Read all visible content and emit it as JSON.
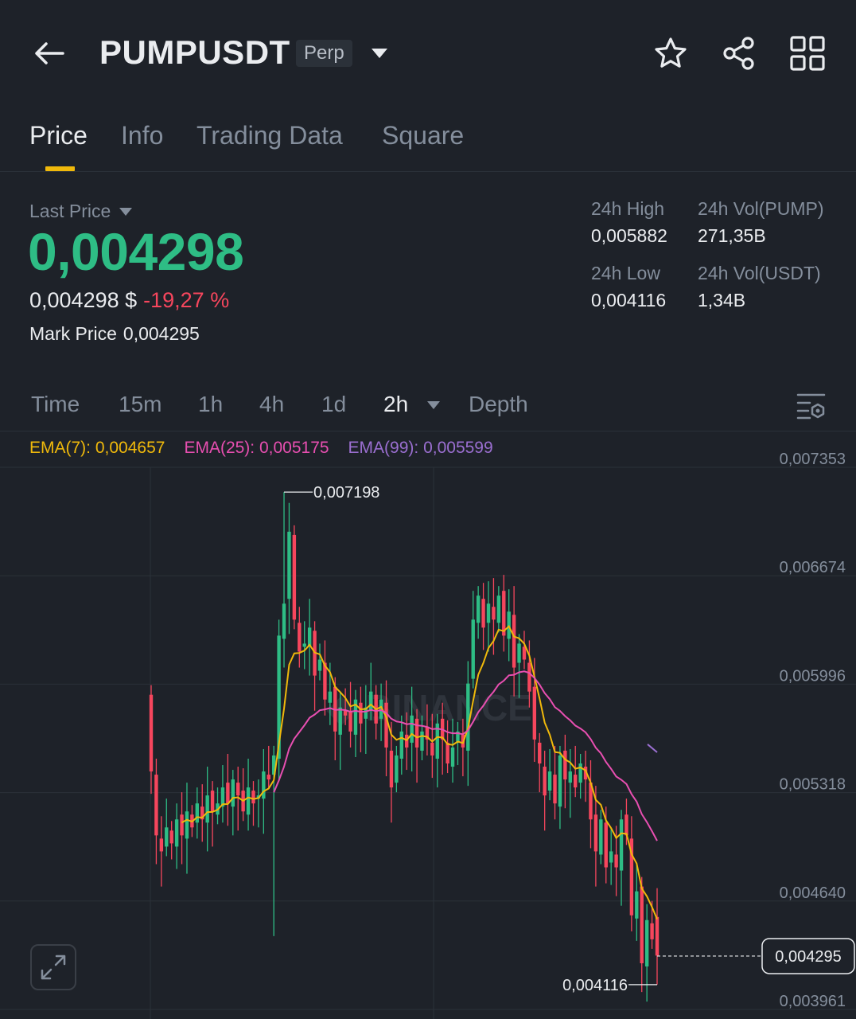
{
  "header": {
    "symbol": "PUMPUSDT",
    "badge": "Perp",
    "icons": [
      "back-arrow-icon",
      "chevron-down-icon",
      "star-icon",
      "share-icon",
      "grid-icon"
    ]
  },
  "tabs": [
    {
      "label": "Price",
      "active": true
    },
    {
      "label": "Info",
      "active": false
    },
    {
      "label": "Trading Data",
      "active": false
    },
    {
      "label": "Square",
      "active": false
    }
  ],
  "price": {
    "last_label": "Last Price",
    "last_price": "0,004298",
    "usd_value": "0,004298 $",
    "change_pct": "-19,27 %",
    "mark_label": "Mark Price",
    "mark_value": "0,004295",
    "high_label": "24h High",
    "high_value": "0,005882",
    "low_label": "24h Low",
    "low_value": "0,004116",
    "vol_base_label": "24h Vol(PUMP)",
    "vol_base_value": "271,35B",
    "vol_quote_label": "24h Vol(USDT)",
    "vol_quote_value": "1,34B"
  },
  "intervals": [
    {
      "label": "Time",
      "active": false
    },
    {
      "label": "15m",
      "active": false
    },
    {
      "label": "1h",
      "active": false
    },
    {
      "label": "4h",
      "active": false
    },
    {
      "label": "1d",
      "active": false
    },
    {
      "label": "2h",
      "active": true
    },
    {
      "label": "Depth",
      "active": false
    }
  ],
  "ema": {
    "ema7": "EMA(7): 0,004657",
    "ema25": "EMA(25): 0,005175",
    "ema99": "EMA(99): 0,005599"
  },
  "colors": {
    "up": "#2ebd85",
    "down": "#f6465d",
    "accent": "#f0b90b",
    "ema7": "#f0b90b",
    "ema25": "#e84fb1",
    "ema99": "#9b6fd1",
    "background": "#1e2229"
  },
  "chart_data": {
    "type": "candlestick",
    "ylim": [
      0.003961,
      0.007353
    ],
    "y_ticks": [
      "0,007353",
      "0,006674",
      "0,005996",
      "0,005318",
      "0,004640",
      "0,003961"
    ],
    "current_price_label": "0,004295",
    "current_price": 0.004295,
    "high_marker": {
      "label": "0,007198",
      "value": 0.007198
    },
    "low_marker": {
      "label": "0,004116",
      "value": 0.004116
    },
    "closes": [
      0.00545,
      0.00505,
      0.00495,
      0.0051,
      0.005,
      0.00515,
      0.00505,
      0.0052,
      0.0051,
      0.00525,
      0.00515,
      0.0053,
      0.0052,
      0.00525,
      0.00535,
      0.00525,
      0.0054,
      0.0053,
      0.0052,
      0.00535,
      0.00525,
      0.0053,
      0.00545,
      0.0054,
      0.00555,
      0.0063,
      0.0065,
      0.00695,
      0.0064,
      0.0062,
      0.00625,
      0.00635,
      0.00605,
      0.00615,
      0.0059,
      0.00595,
      0.0057,
      0.00585,
      0.0058,
      0.0057,
      0.0059,
      0.00575,
      0.00585,
      0.00595,
      0.00575,
      0.0059,
      0.0056,
      0.00535,
      0.00555,
      0.0057,
      0.0056,
      0.0058,
      0.0056,
      0.0057,
      0.00565,
      0.00555,
      0.00575,
      0.00565,
      0.0055,
      0.0056,
      0.0057,
      0.0056,
      0.006,
      0.0064,
      0.00655,
      0.00635,
      0.0065,
      0.0064,
      0.00655,
      0.0063,
      0.00645,
      0.0061,
      0.00625,
      0.00615,
      0.00595,
      0.00565,
      0.0055,
      0.0053,
      0.00545,
      0.00525,
      0.00555,
      0.0054,
      0.00545,
      0.00535,
      0.0055,
      0.0054,
      0.00515,
      0.00495,
      0.00515,
      0.00485,
      0.00495,
      0.00485,
      0.00515,
      0.00505,
      0.00455,
      0.0047,
      0.00425,
      0.00452,
      0.0044,
      0.004298
    ]
  }
}
